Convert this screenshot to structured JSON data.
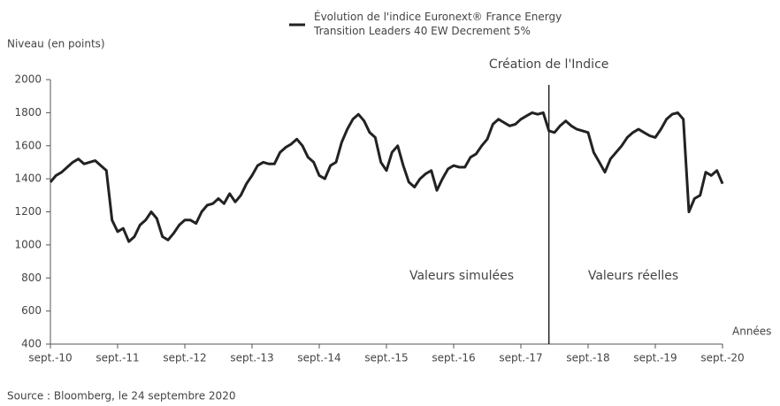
{
  "chart_data": {
    "type": "line",
    "y_label": "Niveau (en points)",
    "x_label": "Années",
    "source": "Source : Bloomberg, le 24 septembre 2020",
    "annotations": {
      "creation": {
        "text": "Création de l'Indice",
        "x": "2018-02"
      },
      "simulated": "Valeurs simulées",
      "real": "Valeurs réelles"
    },
    "x": [
      "2010-09",
      "2010-10",
      "2010-11",
      "2010-12",
      "2011-01",
      "2011-02",
      "2011-03",
      "2011-04",
      "2011-05",
      "2011-06",
      "2011-07",
      "2011-08",
      "2011-09",
      "2011-10",
      "2011-11",
      "2011-12",
      "2012-01",
      "2012-02",
      "2012-03",
      "2012-04",
      "2012-05",
      "2012-06",
      "2012-07",
      "2012-08",
      "2012-09",
      "2012-10",
      "2012-11",
      "2012-12",
      "2013-01",
      "2013-02",
      "2013-03",
      "2013-04",
      "2013-05",
      "2013-06",
      "2013-07",
      "2013-08",
      "2013-09",
      "2013-10",
      "2013-11",
      "2013-12",
      "2014-01",
      "2014-02",
      "2014-03",
      "2014-04",
      "2014-05",
      "2014-06",
      "2014-07",
      "2014-08",
      "2014-09",
      "2014-10",
      "2014-11",
      "2014-12",
      "2015-01",
      "2015-02",
      "2015-03",
      "2015-04",
      "2015-05",
      "2015-06",
      "2015-07",
      "2015-08",
      "2015-09",
      "2015-10",
      "2015-11",
      "2015-12",
      "2016-01",
      "2016-02",
      "2016-03",
      "2016-04",
      "2016-05",
      "2016-06",
      "2016-07",
      "2016-08",
      "2016-09",
      "2016-10",
      "2016-11",
      "2016-12",
      "2017-01",
      "2017-02",
      "2017-03",
      "2017-04",
      "2017-05",
      "2017-06",
      "2017-07",
      "2017-08",
      "2017-09",
      "2017-10",
      "2017-11",
      "2017-12",
      "2018-01",
      "2018-02",
      "2018-03",
      "2018-04",
      "2018-05",
      "2018-06",
      "2018-07",
      "2018-08",
      "2018-09",
      "2018-10",
      "2018-11",
      "2018-12",
      "2019-01",
      "2019-02",
      "2019-03",
      "2019-04",
      "2019-05",
      "2019-06",
      "2019-07",
      "2019-08",
      "2019-09",
      "2019-10",
      "2019-11",
      "2019-12",
      "2020-01",
      "2020-02",
      "2020-03",
      "2020-04",
      "2020-05",
      "2020-06",
      "2020-07",
      "2020-08",
      "2020-09"
    ],
    "series": [
      {
        "name": "Évolution de l'indice Euronext® France Energy Transition Leaders 40 EW Decrement 5%",
        "color": "#222222",
        "values": [
          1380,
          1420,
          1440,
          1470,
          1500,
          1520,
          1490,
          1500,
          1510,
          1480,
          1450,
          1150,
          1080,
          1100,
          1020,
          1050,
          1120,
          1150,
          1200,
          1160,
          1050,
          1030,
          1070,
          1120,
          1150,
          1150,
          1130,
          1200,
          1240,
          1250,
          1280,
          1250,
          1310,
          1260,
          1300,
          1370,
          1420,
          1480,
          1500,
          1490,
          1490,
          1560,
          1590,
          1610,
          1640,
          1600,
          1530,
          1500,
          1420,
          1400,
          1480,
          1500,
          1620,
          1700,
          1760,
          1790,
          1750,
          1680,
          1650,
          1500,
          1450,
          1560,
          1600,
          1480,
          1380,
          1350,
          1400,
          1430,
          1450,
          1330,
          1400,
          1460,
          1480,
          1470,
          1470,
          1530,
          1550,
          1600,
          1640,
          1730,
          1760,
          1740,
          1720,
          1730,
          1760,
          1780,
          1800,
          1790,
          1800,
          1690,
          1680,
          1720,
          1750,
          1720,
          1700,
          1690,
          1680,
          1560,
          1500,
          1440,
          1520,
          1560,
          1600,
          1650,
          1680,
          1700,
          1680,
          1660,
          1650,
          1700,
          1760,
          1790,
          1800,
          1760,
          1200,
          1280,
          1300,
          1440,
          1420,
          1450,
          1370
        ]
      }
    ],
    "xlim": [
      "2010-09",
      "2020-09"
    ],
    "xticks": [
      {
        "value": "2010-09",
        "label": "sept.-10"
      },
      {
        "value": "2011-09",
        "label": "sept.-11"
      },
      {
        "value": "2012-09",
        "label": "sept.-12"
      },
      {
        "value": "2013-09",
        "label": "sept.-13"
      },
      {
        "value": "2014-09",
        "label": "sept.-14"
      },
      {
        "value": "2015-09",
        "label": "sept.-15"
      },
      {
        "value": "2016-09",
        "label": "sept.-16"
      },
      {
        "value": "2017-09",
        "label": "sept.-17"
      },
      {
        "value": "2018-09",
        "label": "sept.-18"
      },
      {
        "value": "2019-09",
        "label": "sept.-19"
      },
      {
        "value": "2020-09",
        "label": "sept.-20"
      }
    ],
    "ylim": [
      400,
      2000
    ],
    "yticks": [
      400,
      600,
      800,
      1000,
      1200,
      1400,
      1600,
      1800,
      2000
    ],
    "grid": false
  }
}
